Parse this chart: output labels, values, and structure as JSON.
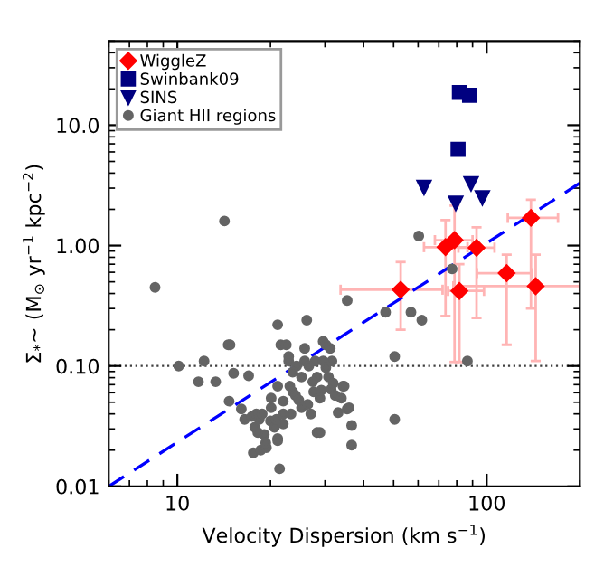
{
  "chart_data": {
    "type": "scatter",
    "xlabel": "Velocity Dispersion (km s$^{−1}$)",
    "ylabel": "Σ$_{*}$∼ (M$_{⊙}$ yr$^{−1}$ kpc$^{−2}$)",
    "log": "xy",
    "grid": false,
    "legend": "top left",
    "xlim": [
      6,
      200
    ],
    "ylim": [
      0.01,
      50
    ],
    "xticks": [
      10,
      100
    ],
    "yticks": [
      {
        "value": 0.01,
        "label": "0.01"
      },
      {
        "value": 0.1,
        "label": "0.10"
      },
      {
        "value": 1,
        "label": "1.00"
      },
      {
        "value": 10,
        "label": "10.0"
      }
    ],
    "ref_lines": [
      {
        "axis": "y",
        "value": 0.1,
        "color": "#404040",
        "line_style": "dotted"
      }
    ],
    "series": [
      {
        "name": "WiggleZ",
        "color": "#ff0000",
        "marker": "diamond",
        "x": [
          73.6,
          78.7,
          92.7,
          139,
          52.7,
          81.6,
          116,
          144
        ],
        "values": [
          0.97,
          1.11,
          0.96,
          1.7,
          0.43,
          0.42,
          0.59,
          0.46
        ],
        "errors": [
          [
            0.26,
            1.63
          ],
          [
            0.108,
            2.15
          ],
          [
            0.25,
            1.42
          ],
          [
            0.3,
            2.4
          ],
          [
            0.2,
            0.73
          ],
          [
            0.108,
            0.7
          ],
          [
            0.15,
            0.84
          ],
          [
            0.11,
            0.84
          ]
        ],
        "xerrors": [
          [
            62.7,
            86.7
          ],
          [
            68,
            90
          ],
          [
            81,
            106
          ],
          [
            117,
            170
          ],
          [
            33.7,
            72
          ],
          [
            75,
            98
          ],
          [
            93,
            140
          ],
          [
            78,
            200
          ]
        ]
      },
      {
        "name": "Swinbank09",
        "color": "#000080",
        "marker": "square",
        "x": [
          81.6,
          88,
          80.8
        ],
        "values": [
          18.7,
          17.7,
          6.3
        ]
      },
      {
        "name": "SINS",
        "color": "#000080",
        "marker": "triangle",
        "x": [
          62.7,
          79.4,
          89,
          96.8
        ],
        "values": [
          3.05,
          2.25,
          3.27,
          2.5
        ]
      },
      {
        "name": "Giant HII regions",
        "color": "#646464",
        "marker": "circle",
        "x": [
          8.47,
          10.1,
          11.7,
          12.2,
          13.3,
          14.6,
          14.8,
          15.2,
          14.7,
          16.1,
          17.0,
          16.5,
          17.4,
          17.8,
          18.0,
          18.4,
          17.6,
          18.6,
          19.1,
          19.4,
          20.0,
          20.1,
          20.6,
          20.9,
          21.1,
          21.6,
          21.1,
          21.4,
          22.0,
          22.5,
          22.0,
          23.1,
          22.9,
          22.9,
          23.6,
          24.1,
          25.2,
          25.8,
          26.2,
          25.8,
          26.4,
          27.0,
          27.6,
          27.9,
          28.3,
          28.9,
          29.6,
          30.2,
          30.8,
          31.4,
          28.3,
          28.9,
          31.6,
          31.9,
          32.4,
          33.1,
          33.9,
          34.3,
          35.4,
          34.6,
          35.4,
          35.9,
          36.6,
          21.1,
          19.3,
          24.3,
          26.6,
          31.2,
          29.2,
          27.4,
          23.6,
          22.0,
          23.3,
          24.7,
          21.1,
          20.1,
          18.8,
          18.2,
          25.2,
          29.6,
          30.2,
          50.4,
          50.4,
          47.1,
          56.9,
          61.7,
          86.6,
          60.3,
          77.3,
          36.6,
          14.2
        ],
        "values": [
          0.45,
          0.1,
          0.074,
          0.11,
          0.074,
          0.15,
          0.15,
          0.087,
          0.051,
          0.044,
          0.083,
          0.036,
          0.038,
          0.031,
          0.04,
          0.036,
          0.019,
          0.02,
          0.027,
          0.021,
          0.035,
          0.045,
          0.031,
          0.036,
          0.22,
          0.15,
          0.025,
          0.014,
          0.04,
          0.15,
          0.051,
          0.068,
          0.12,
          0.11,
          0.061,
          0.057,
          0.045,
          0.14,
          0.24,
          0.11,
          0.048,
          0.04,
          0.061,
          0.11,
          0.081,
          0.054,
          0.16,
          0.15,
          0.081,
          0.064,
          0.028,
          0.028,
          0.11,
          0.072,
          0.057,
          0.041,
          0.054,
          0.068,
          0.044,
          0.068,
          0.35,
          0.045,
          0.032,
          0.024,
          0.023,
          0.1,
          0.1,
          0.14,
          0.063,
          0.074,
          0.089,
          0.033,
          0.04,
          0.052,
          0.068,
          0.054,
          0.04,
          0.028,
          0.081,
          0.11,
          0.097,
          0.12,
          0.036,
          0.28,
          0.28,
          0.24,
          0.11,
          1.2,
          0.64,
          0.022,
          1.6
        ]
      },
      {
        "type": "line",
        "color": "#0000ff",
        "marker": "none",
        "line_style": "dashed",
        "x": [
          6,
          200
        ],
        "values": [
          0.01,
          3.3
        ]
      }
    ]
  }
}
